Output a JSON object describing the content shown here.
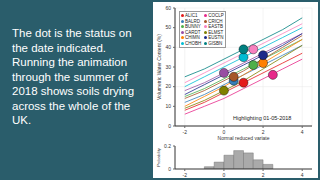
{
  "slide_text": [
    "The dot is the status on",
    "the date indicated.",
    "Running the animation",
    "through the summer of",
    "2018 shows soils drying",
    "across the whole of the",
    "UK."
  ],
  "chart_data": [
    {
      "type": "line",
      "annotation": "Highlighting 01-05-2018",
      "xlabel": "Normal reduced variate",
      "ylabel": "Volumetric Water Content (%)",
      "x": [
        -2,
        -1,
        0,
        1,
        2,
        3,
        4
      ],
      "xlim": [
        -2.5,
        4.5
      ],
      "xticks": [
        -2,
        0,
        2,
        4
      ],
      "ylim": [
        0,
        60
      ],
      "yticks": [
        0,
        10,
        20,
        30,
        40,
        50,
        60
      ],
      "legend": "upper left",
      "marker": "circle",
      "series": [
        {
          "name": "ALIC1",
          "color": "#e41a1c",
          "values": [
            8,
            12,
            17,
            22,
            27,
            32,
            37
          ],
          "point": {
            "x": 1,
            "y": 22
          }
        },
        {
          "name": "BALRD",
          "color": "#377eb8",
          "values": [
            12,
            16,
            21,
            26,
            31,
            36,
            41
          ],
          "point": {
            "x": 0.5,
            "y": 23
          }
        },
        {
          "name": "BUNNY",
          "color": "#4daf4a",
          "values": [
            15,
            19,
            24,
            29,
            34,
            39,
            44
          ],
          "point": {
            "x": 1.5,
            "y": 31
          }
        },
        {
          "name": "CARDT",
          "color": "#984ea3",
          "values": [
            18,
            22,
            27,
            32,
            37,
            42,
            47
          ],
          "point": {
            "x": 0,
            "y": 27
          }
        },
        {
          "name": "CHIMN",
          "color": "#ff7f00",
          "values": [
            10,
            15,
            20,
            26,
            32,
            38,
            44
          ],
          "point": {
            "x": 2,
            "y": 32
          }
        },
        {
          "name": "CHOBH",
          "color": "#00bcd4",
          "values": [
            20,
            25,
            30,
            35,
            40,
            45,
            50
          ],
          "point": {
            "x": 1,
            "y": 35
          }
        },
        {
          "name": "COCLP",
          "color": "#e7298a",
          "values": [
            6,
            10,
            14,
            19,
            24,
            29,
            34
          ],
          "point": {
            "x": 2.5,
            "y": 26
          }
        },
        {
          "name": "CRICH",
          "color": "#a65628",
          "values": [
            14,
            18,
            23,
            28,
            34,
            40,
            46
          ],
          "point": {
            "x": 0.5,
            "y": 25
          }
        },
        {
          "name": "EASTB",
          "color": "#f781bf",
          "values": [
            22,
            27,
            32,
            37,
            42,
            47,
            52
          ],
          "point": {
            "x": 1.5,
            "y": 39
          }
        },
        {
          "name": "ELMST",
          "color": "#808000",
          "values": [
            9,
            13,
            18,
            23,
            29,
            35,
            41
          ],
          "point": {
            "x": 0,
            "y": 18
          }
        },
        {
          "name": "EUSTN",
          "color": "#1b2a8a",
          "values": [
            16,
            21,
            26,
            31,
            36,
            41,
            47
          ],
          "point": {
            "x": 2,
            "y": 36
          }
        },
        {
          "name": "GISBN",
          "color": "#008080",
          "values": [
            25,
            29,
            34,
            39,
            44,
            49,
            55
          ],
          "point": {
            "x": 1,
            "y": 39
          }
        }
      ]
    },
    {
      "type": "histogram",
      "ylabel": "Probability",
      "bins": [
        -1,
        -0.5,
        0,
        0.5,
        1,
        1.5,
        2,
        2.5
      ],
      "values": [
        0.02,
        0.06,
        0.12,
        0.16,
        0.14,
        0.08,
        0.04
      ],
      "color": "#aaaaaa",
      "xlim": [
        -2.5,
        4.5
      ],
      "xticks": [
        -2,
        0,
        2,
        4
      ],
      "ylim": [
        0,
        0.2
      ],
      "yticks": [
        0,
        0.2
      ]
    }
  ]
}
